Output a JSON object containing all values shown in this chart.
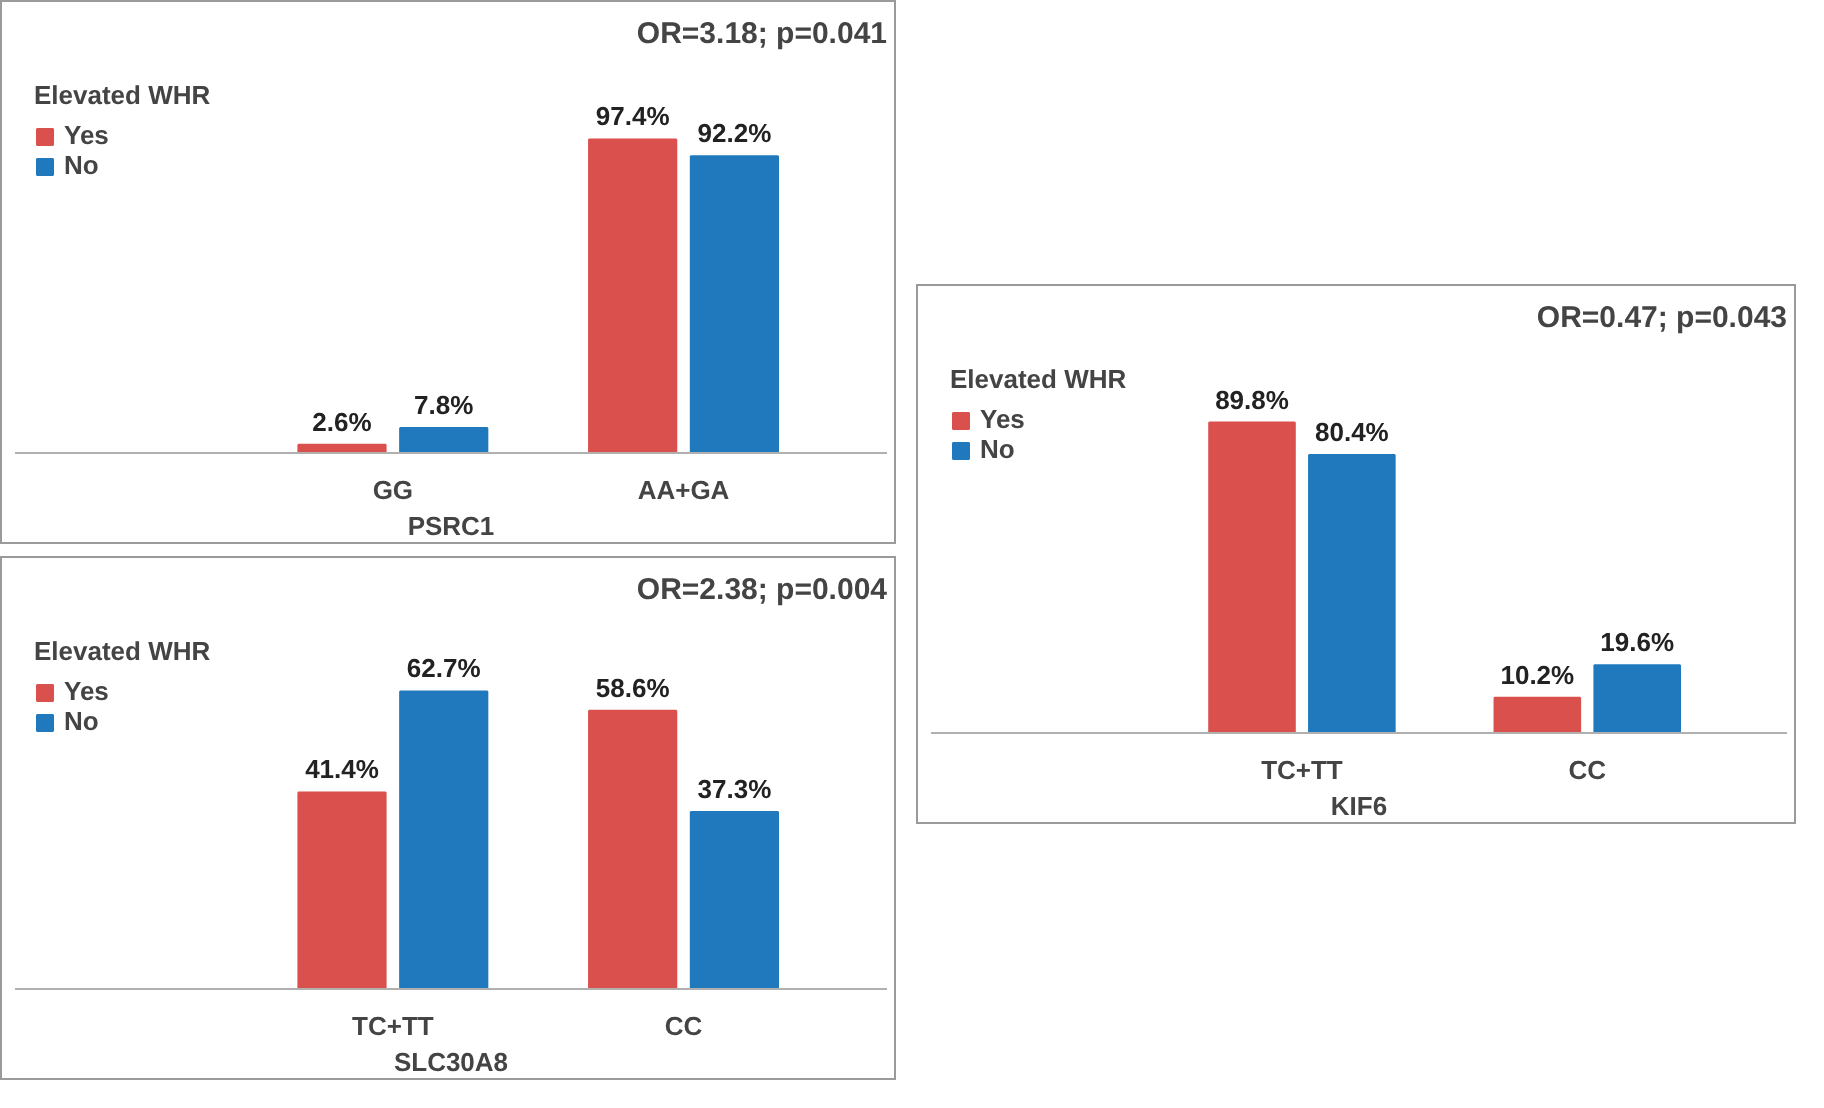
{
  "chart_data": [
    {
      "type": "bar",
      "title": "OR=3.18; p=0.041",
      "xlabel": "PSRC1",
      "legend_title": "Elevated WHR",
      "legend": "top left",
      "grid": false,
      "categories": [
        "GG",
        "AA+GA"
      ],
      "series": [
        {
          "name": "Yes",
          "color": "#d9504c",
          "values": [
            2.6,
            97.4
          ],
          "value_labels": [
            "2.6%",
            "97.4%"
          ]
        },
        {
          "name": "No",
          "color": "#2179bd",
          "values": [
            7.8,
            92.2
          ],
          "value_labels": [
            "7.8%",
            "92.2%"
          ]
        }
      ]
    },
    {
      "type": "bar",
      "title": "OR=0.47; p=0.043",
      "xlabel": "KIF6",
      "legend_title": "Elevated WHR",
      "legend": "top left",
      "grid": false,
      "categories": [
        "TC+TT",
        "CC"
      ],
      "series": [
        {
          "name": "Yes",
          "color": "#d9504c",
          "values": [
            89.8,
            10.2
          ],
          "value_labels": [
            "89.8%",
            "10.2%"
          ]
        },
        {
          "name": "No",
          "color": "#2179bd",
          "values": [
            80.4,
            19.6
          ],
          "value_labels": [
            "80.4%",
            "19.6%"
          ]
        }
      ]
    },
    {
      "type": "bar",
      "title": "OR=2.38; p=0.004",
      "xlabel": "SLC30A8",
      "legend_title": "Elevated WHR",
      "legend": "top left",
      "grid": false,
      "categories": [
        "TC+TT",
        "CC"
      ],
      "series": [
        {
          "name": "Yes",
          "color": "#d9504c",
          "values": [
            41.4,
            58.6
          ],
          "value_labels": [
            "41.4%",
            "58.6%"
          ]
        },
        {
          "name": "No",
          "color": "#2179bd",
          "values": [
            62.7,
            37.3
          ],
          "value_labels": [
            "62.7%",
            "37.3%"
          ]
        }
      ]
    }
  ]
}
